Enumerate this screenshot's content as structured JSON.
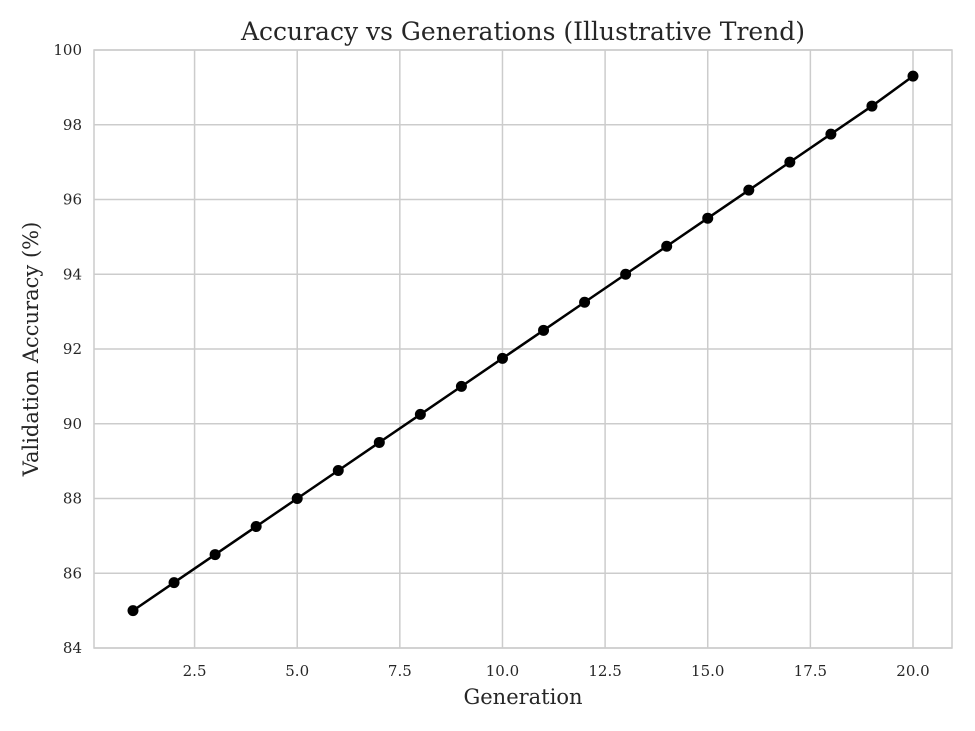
{
  "chart_data": {
    "type": "line",
    "title": "Accuracy vs Generations (Illustrative Trend)",
    "xlabel": "Generation",
    "ylabel": "Validation Accuracy (%)",
    "xlim": [
      0.05,
      20.95
    ],
    "ylim": [
      84,
      100
    ],
    "xticks": [
      2.5,
      5.0,
      7.5,
      10.0,
      12.5,
      15.0,
      17.5,
      20.0
    ],
    "xtick_labels": [
      "2.5",
      "5.0",
      "7.5",
      "10.0",
      "12.5",
      "15.0",
      "17.5",
      "20.0"
    ],
    "yticks": [
      84,
      86,
      88,
      90,
      92,
      94,
      96,
      98,
      100
    ],
    "ytick_labels": [
      "84",
      "86",
      "88",
      "90",
      "92",
      "94",
      "96",
      "98",
      "100"
    ],
    "grid": true,
    "line_color": "#000000",
    "grid_color": "#cccccc",
    "series": [
      {
        "x": [
          1,
          2,
          3,
          4,
          5,
          6,
          7,
          8,
          9,
          10,
          11,
          12,
          13,
          14,
          15,
          16,
          17,
          18,
          19,
          20
        ],
        "values": [
          85.0,
          85.75,
          86.5,
          87.25,
          88.0,
          88.75,
          89.5,
          90.25,
          91.0,
          91.75,
          92.5,
          93.25,
          94.0,
          94.75,
          95.5,
          96.25,
          97.0,
          97.75,
          98.5,
          99.3
        ]
      }
    ]
  }
}
